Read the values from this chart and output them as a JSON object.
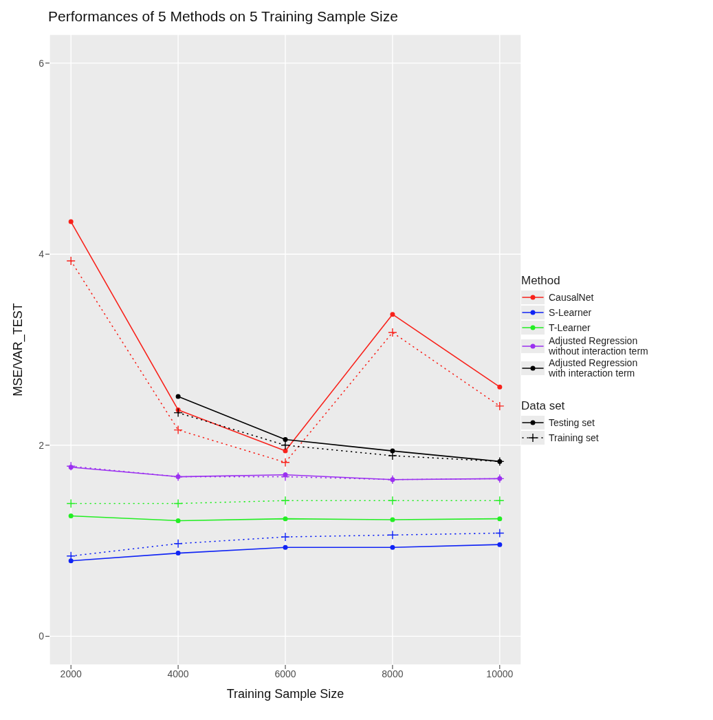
{
  "chart_data": {
    "type": "line",
    "title": "Performances of 5 Methods on 5 Training Sample Size",
    "xlabel": "Training Sample Size",
    "ylabel": "MSE/VAR_TEST",
    "legend_title": "Method",
    "legend": "right",
    "grid": true,
    "x": [
      2000,
      4000,
      6000,
      8000,
      10000
    ],
    "xlim": [
      1600,
      10400
    ],
    "xticks": [
      2000,
      4000,
      6000,
      8000,
      10000
    ],
    "ylim": [
      -0.3,
      6.3
    ],
    "yticks": [
      0,
      2,
      4,
      6
    ],
    "series": [
      {
        "name": "CausalNet",
        "color": "#f8221b",
        "marker": "circle",
        "line_style": "solid",
        "values": [
          4.34,
          2.37,
          1.94,
          3.37,
          2.61
        ]
      },
      {
        "name": "S-Learner",
        "color": "#1024f5",
        "marker": "circle",
        "line_style": "solid",
        "values": [
          0.79,
          0.87,
          0.93,
          0.93,
          0.96
        ]
      },
      {
        "name": "T-Learner",
        "color": "#23ee23",
        "marker": "circle",
        "line_style": "solid",
        "values": [
          1.26,
          1.21,
          1.23,
          1.22,
          1.23
        ]
      },
      {
        "name": "Adjusted Regression without interaction term",
        "color": "#9b30f0",
        "marker": "circle",
        "line_style": "solid",
        "values": [
          1.77,
          1.67,
          1.69,
          1.64,
          1.65
        ]
      },
      {
        "name": "Adjusted Regression with interaction term",
        "color": "#000000",
        "marker": "circle",
        "line_style": "solid",
        "values": [
          null,
          2.51,
          2.06,
          1.94,
          1.83
        ]
      },
      {
        "color": "#f8221b",
        "marker": "cross",
        "line_style": "dotted",
        "values": [
          3.93,
          2.16,
          1.82,
          3.18,
          2.41
        ]
      },
      {
        "color": "#1024f5",
        "marker": "cross",
        "line_style": "dotted",
        "values": [
          0.84,
          0.97,
          1.04,
          1.06,
          1.08
        ]
      },
      {
        "color": "#23ee23",
        "marker": "cross",
        "line_style": "dotted",
        "values": [
          1.39,
          1.39,
          1.42,
          1.42,
          1.42
        ]
      },
      {
        "color": "#9b30f0",
        "marker": "cross",
        "line_style": "dotted",
        "values": [
          1.78,
          1.67,
          1.67,
          1.64,
          1.65
        ]
      },
      {
        "color": "#000000",
        "marker": "cross",
        "line_style": "dotted",
        "values": [
          null,
          2.34,
          2.0,
          1.89,
          1.83
        ]
      }
    ],
    "annotations": [
      "Data set",
      "Testing set",
      "Training set"
    ]
  }
}
